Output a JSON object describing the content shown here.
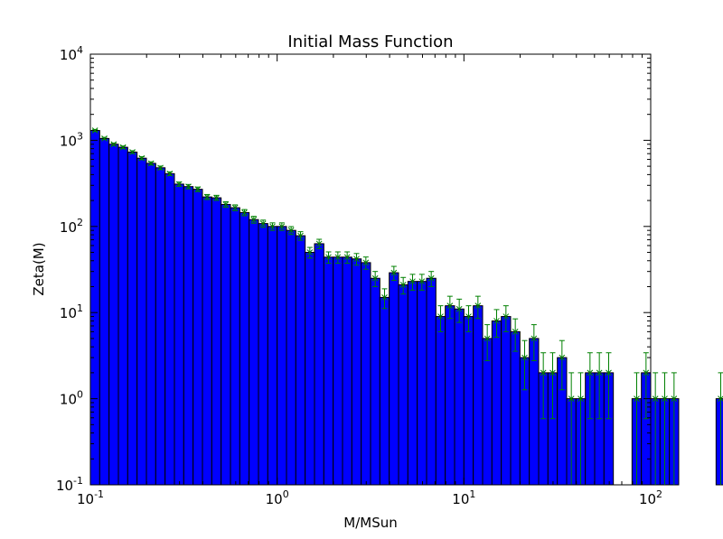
{
  "chart_data": {
    "type": "bar",
    "title": "Initial Mass Function",
    "xlabel": "M/MSun",
    "ylabel": "Zeta(M)",
    "x_scale": "log",
    "y_scale": "log",
    "xlim": [
      0.1,
      100
    ],
    "ylim": [
      0.1,
      10000
    ],
    "grid": false,
    "x_ticks": [
      {
        "value": 0.1,
        "base": "10",
        "exp": "-1"
      },
      {
        "value": 1,
        "base": "10",
        "exp": "0"
      },
      {
        "value": 10,
        "base": "10",
        "exp": "1"
      },
      {
        "value": 100,
        "base": "10",
        "exp": "2"
      }
    ],
    "y_ticks": [
      {
        "value": 0.1,
        "base": "10",
        "exp": "-1"
      },
      {
        "value": 1,
        "base": "10",
        "exp": "0"
      },
      {
        "value": 10,
        "base": "10",
        "exp": "1"
      },
      {
        "value": 100,
        "base": "10",
        "exp": "2"
      },
      {
        "value": 1000,
        "base": "10",
        "exp": "3"
      },
      {
        "value": 10000,
        "base": "10",
        "exp": "4"
      }
    ],
    "bins_per_decade": 20,
    "bin_start": 0.1,
    "bar_color": "#0000ff",
    "bar_edge_color": "#000000",
    "errorbar_color": "#008000",
    "values": [
      1300,
      1050,
      900,
      830,
      730,
      620,
      540,
      480,
      410,
      310,
      290,
      270,
      220,
      215,
      180,
      165,
      145,
      120,
      108,
      100,
      100,
      90,
      78,
      50,
      63,
      44,
      44,
      44,
      42,
      38,
      25,
      15,
      29,
      21,
      23,
      23,
      25,
      9,
      12,
      11,
      9,
      12,
      5,
      8,
      9,
      6,
      3,
      5,
      2,
      2,
      3,
      1,
      1,
      2,
      2,
      2,
      0,
      0,
      1,
      2,
      1,
      1,
      1,
      0,
      0,
      0,
      0,
      1,
      0,
      0
    ]
  }
}
